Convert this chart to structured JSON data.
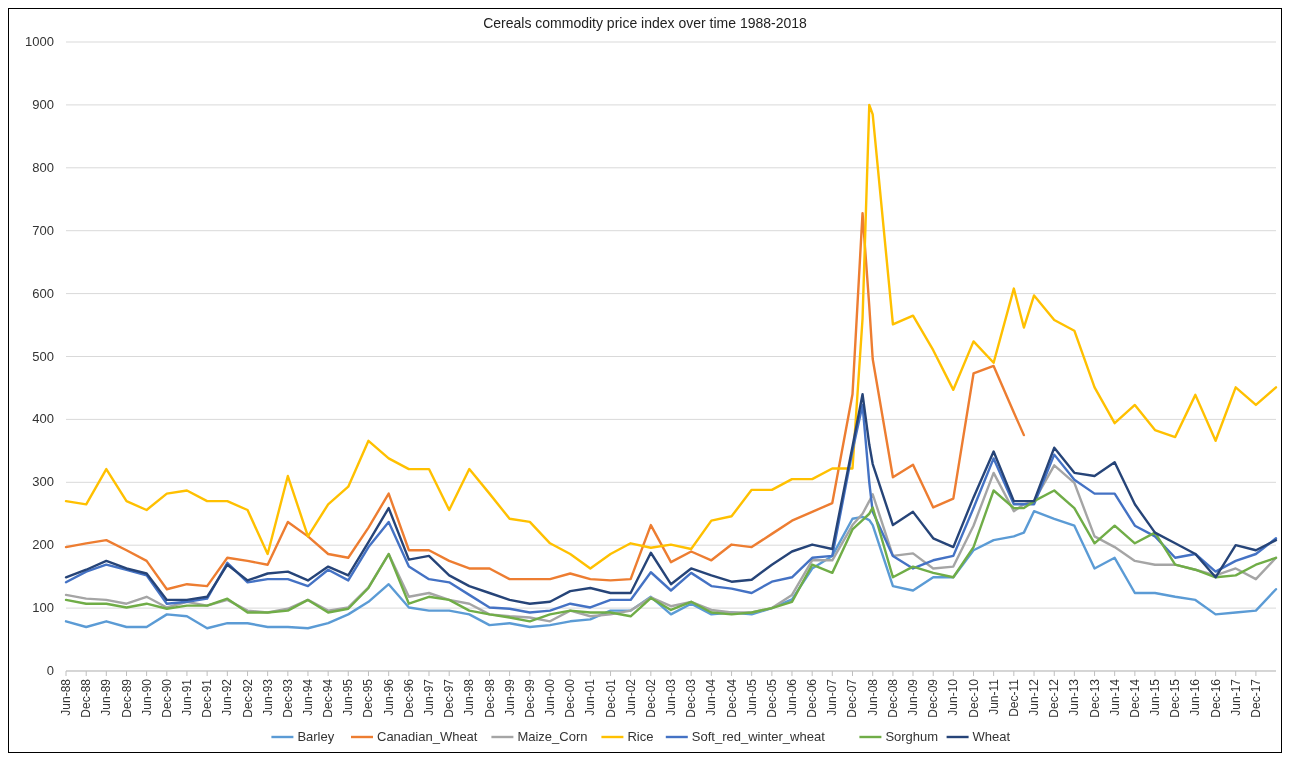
{
  "chart_data": {
    "type": "line",
    "title": "Cereals commodity price index over time 1988-2018",
    "x": [
      "1988-06",
      "1988-12",
      "1989-06",
      "1989-12",
      "1990-06",
      "1990-12",
      "1991-06",
      "1991-12",
      "1992-06",
      "1992-12",
      "1993-06",
      "1993-12",
      "1994-06",
      "1994-12",
      "1995-06",
      "1995-12",
      "1996-06",
      "1996-12",
      "1997-06",
      "1997-12",
      "1998-06",
      "1998-12",
      "1999-06",
      "1999-12",
      "2000-06",
      "2000-12",
      "2001-06",
      "2001-12",
      "2002-06",
      "2002-12",
      "2003-06",
      "2003-12",
      "2004-06",
      "2004-12",
      "2005-06",
      "2005-12",
      "2006-06",
      "2006-12",
      "2007-06",
      "2007-12",
      "2008-03",
      "2008-05",
      "2008-06",
      "2008-12",
      "2009-06",
      "2009-12",
      "2010-06",
      "2010-12",
      "2011-06",
      "2011-12",
      "2012-03",
      "2012-06",
      "2012-12",
      "2013-06",
      "2013-12",
      "2014-06",
      "2014-12",
      "2015-06",
      "2015-12",
      "2016-06",
      "2016-12",
      "2017-06",
      "2017-12",
      "2018-06"
    ],
    "series": [
      {
        "name": "Barley",
        "color": "#5b9bd5",
        "values": [
          79,
          70,
          79,
          70,
          70,
          90,
          87,
          68,
          76,
          76,
          70,
          70,
          68,
          76,
          90,
          110,
          138,
          101,
          96,
          96,
          90,
          73,
          76,
          70,
          73,
          79,
          82,
          96,
          96,
          118,
          90,
          107,
          90,
          93,
          90,
          100,
          114,
          163,
          183,
          242,
          245,
          240,
          232,
          135,
          128,
          149,
          149,
          192,
          208,
          214,
          220,
          254,
          242,
          231,
          163,
          180,
          124,
          124,
          118,
          113,
          90,
          93,
          96,
          130
        ]
      },
      {
        "name": "Canadian_Wheat",
        "color": "#ed7d31",
        "values": [
          197,
          203,
          208,
          192,
          175,
          130,
          138,
          135,
          180,
          175,
          169,
          237,
          214,
          186,
          180,
          228,
          282,
          192,
          192,
          175,
          163,
          163,
          146,
          146,
          146,
          155,
          146,
          144,
          146,
          232,
          173,
          190,
          176,
          201,
          197,
          218,
          239,
          253,
          267,
          440,
          728,
          580,
          496,
          308,
          328,
          260,
          274,
          473,
          485,
          411,
          375,
          null,
          null,
          null,
          null,
          null,
          null,
          null,
          null,
          null,
          null,
          null,
          null,
          null
        ]
      },
      {
        "name": "Maize_Corn",
        "color": "#a5a5a5",
        "values": [
          121,
          115,
          113,
          107,
          118,
          101,
          110,
          104,
          113,
          96,
          93,
          99,
          113,
          96,
          101,
          133,
          186,
          118,
          124,
          113,
          107,
          90,
          87,
          85,
          79,
          96,
          87,
          90,
          96,
          117,
          103,
          110,
          97,
          93,
          93,
          100,
          121,
          176,
          176,
          232,
          250,
          270,
          281,
          183,
          187,
          163,
          166,
          231,
          315,
          254,
          265,
          270,
          327,
          299,
          214,
          197,
          175,
          169,
          169,
          161,
          152,
          163,
          146,
          180
        ]
      },
      {
        "name": "Rice",
        "color": "#ffc000",
        "values": [
          270,
          265,
          321,
          270,
          256,
          282,
          287,
          270,
          270,
          256,
          186,
          310,
          214,
          265,
          293,
          366,
          338,
          321,
          321,
          256,
          321,
          282,
          242,
          237,
          203,
          186,
          163,
          186,
          203,
          196,
          201,
          194,
          239,
          246,
          288,
          288,
          305,
          305,
          322,
          322,
          560,
          900,
          885,
          551,
          565,
          510,
          447,
          524,
          490,
          608,
          546,
          597,
          558,
          541,
          451,
          394,
          423,
          383,
          372,
          439,
          366,
          451,
          423,
          451
        ]
      },
      {
        "name": "Soft_red_winter_wheat",
        "color": "#4472c4",
        "values": [
          141,
          158,
          169,
          161,
          152,
          107,
          110,
          115,
          172,
          141,
          146,
          146,
          135,
          161,
          144,
          197,
          237,
          166,
          146,
          141,
          121,
          101,
          99,
          93,
          96,
          107,
          101,
          113,
          113,
          157,
          128,
          156,
          135,
          131,
          124,
          142,
          149,
          180,
          183,
          350,
          423,
          300,
          253,
          183,
          163,
          176,
          183,
          259,
          338,
          265,
          265,
          265,
          344,
          304,
          282,
          282,
          231,
          214,
          180,
          186,
          158,
          175,
          186,
          211
        ]
      },
      {
        "name": "Sorghum",
        "color": "#70ad47",
        "values": [
          113,
          107,
          107,
          101,
          107,
          99,
          104,
          104,
          115,
          93,
          93,
          96,
          113,
          93,
          99,
          132,
          186,
          107,
          118,
          113,
          96,
          90,
          85,
          79,
          90,
          96,
          93,
          93,
          87,
          116,
          97,
          110,
          93,
          90,
          93,
          100,
          110,
          169,
          156,
          225,
          240,
          250,
          260,
          149,
          166,
          156,
          149,
          197,
          287,
          259,
          259,
          270,
          287,
          259,
          203,
          231,
          203,
          220,
          169,
          161,
          149,
          152,
          169,
          180
        ]
      },
      {
        "name": "Wheat",
        "color": "#264478",
        "values": [
          149,
          161,
          175,
          163,
          155,
          113,
          113,
          118,
          169,
          144,
          155,
          158,
          144,
          166,
          152,
          205,
          259,
          177,
          183,
          152,
          135,
          124,
          113,
          107,
          110,
          127,
          132,
          124,
          124,
          188,
          138,
          163,
          152,
          142,
          145,
          169,
          190,
          201,
          194,
          357,
          440,
          360,
          329,
          232,
          253,
          211,
          197,
          276,
          349,
          270,
          270,
          270,
          355,
          315,
          310,
          332,
          265,
          220,
          203,
          186,
          149,
          200,
          192,
          208
        ]
      }
    ],
    "xlim": [
      "1988-06",
      "2018-06"
    ],
    "xticks": [
      {
        "value": "1988-06",
        "label": "Jun-88"
      },
      {
        "value": "1988-12",
        "label": "Dec-88"
      },
      {
        "value": "1989-06",
        "label": "Jun-89"
      },
      {
        "value": "1989-12",
        "label": "Dec-89"
      },
      {
        "value": "1990-06",
        "label": "Jun-90"
      },
      {
        "value": "1990-12",
        "label": "Dec-90"
      },
      {
        "value": "1991-06",
        "label": "Jun-91"
      },
      {
        "value": "1991-12",
        "label": "Dec-91"
      },
      {
        "value": "1992-06",
        "label": "Jun-92"
      },
      {
        "value": "1992-12",
        "label": "Dec-92"
      },
      {
        "value": "1993-06",
        "label": "Jun-93"
      },
      {
        "value": "1993-12",
        "label": "Dec-93"
      },
      {
        "value": "1994-06",
        "label": "Jun-94"
      },
      {
        "value": "1994-12",
        "label": "Dec-94"
      },
      {
        "value": "1995-06",
        "label": "Jun-95"
      },
      {
        "value": "1995-12",
        "label": "Dec-95"
      },
      {
        "value": "1996-06",
        "label": "Jun-96"
      },
      {
        "value": "1996-12",
        "label": "Dec-96"
      },
      {
        "value": "1997-06",
        "label": "Jun-97"
      },
      {
        "value": "1997-12",
        "label": "Dec-97"
      },
      {
        "value": "1998-06",
        "label": "Jun-98"
      },
      {
        "value": "1998-12",
        "label": "Dec-98"
      },
      {
        "value": "1999-06",
        "label": "Jun-99"
      },
      {
        "value": "1999-12",
        "label": "Dec-99"
      },
      {
        "value": "2000-06",
        "label": "Jun-00"
      },
      {
        "value": "2000-12",
        "label": "Dec-00"
      },
      {
        "value": "2001-06",
        "label": "Jun-01"
      },
      {
        "value": "2001-12",
        "label": "Dec-01"
      },
      {
        "value": "2002-06",
        "label": "Jun-02"
      },
      {
        "value": "2002-12",
        "label": "Dec-02"
      },
      {
        "value": "2003-06",
        "label": "Jun-03"
      },
      {
        "value": "2003-12",
        "label": "Dec-03"
      },
      {
        "value": "2004-06",
        "label": "Jun-04"
      },
      {
        "value": "2004-12",
        "label": "Dec-04"
      },
      {
        "value": "2005-06",
        "label": "Jun-05"
      },
      {
        "value": "2005-12",
        "label": "Dec-05"
      },
      {
        "value": "2006-06",
        "label": "Jun-06"
      },
      {
        "value": "2006-12",
        "label": "Dec-06"
      },
      {
        "value": "2007-06",
        "label": "Jun-07"
      },
      {
        "value": "2007-12",
        "label": "Dec-07"
      },
      {
        "value": "2008-06",
        "label": "Jun-08"
      },
      {
        "value": "2008-12",
        "label": "Dec-08"
      },
      {
        "value": "2009-06",
        "label": "Jun-09"
      },
      {
        "value": "2009-12",
        "label": "Dec-09"
      },
      {
        "value": "2010-06",
        "label": "Jun-10"
      },
      {
        "value": "2010-12",
        "label": "Dec-10"
      },
      {
        "value": "2011-06",
        "label": "Jun-11"
      },
      {
        "value": "2011-12",
        "label": "Dec-11"
      },
      {
        "value": "2012-06",
        "label": "Jun-12"
      },
      {
        "value": "2012-12",
        "label": "Dec-12"
      },
      {
        "value": "2013-06",
        "label": "Jun-13"
      },
      {
        "value": "2013-12",
        "label": "Dec-13"
      },
      {
        "value": "2014-06",
        "label": "Jun-14"
      },
      {
        "value": "2014-12",
        "label": "Dec-14"
      },
      {
        "value": "2015-06",
        "label": "Jun-15"
      },
      {
        "value": "2015-12",
        "label": "Dec-15"
      },
      {
        "value": "2016-06",
        "label": "Jun-16"
      },
      {
        "value": "2016-12",
        "label": "Dec-16"
      },
      {
        "value": "2017-06",
        "label": "Jun-17"
      },
      {
        "value": "2017-12",
        "label": "Dec-17"
      }
    ],
    "ylim": [
      0,
      1000
    ],
    "yticks": [
      0,
      100,
      200,
      300,
      400,
      500,
      600,
      700,
      800,
      900,
      1000
    ],
    "grid": "y",
    "legend": "bottom",
    "marker": "none",
    "line_style": "solid"
  }
}
